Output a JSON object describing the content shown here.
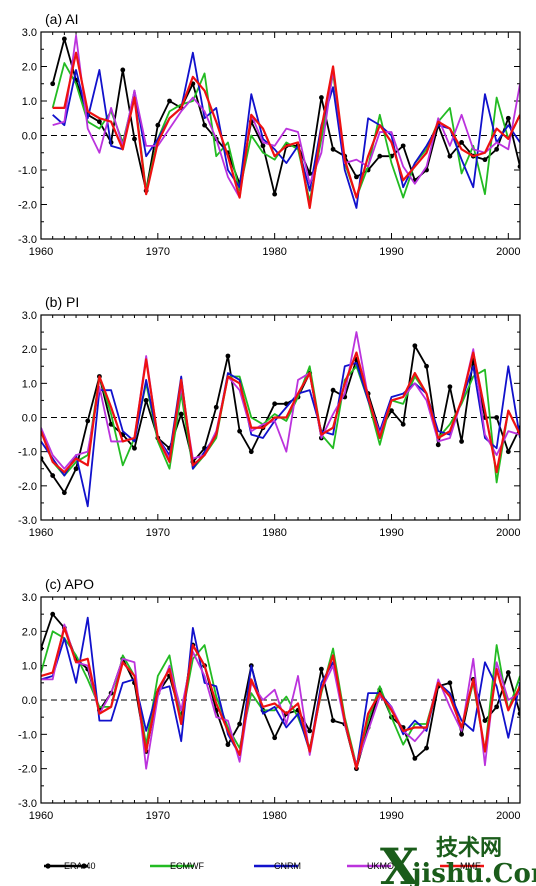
{
  "chart_data": [
    {
      "type": "line",
      "title": "(a) AI",
      "x": [
        1961,
        1962,
        1963,
        1964,
        1965,
        1966,
        1967,
        1968,
        1969,
        1970,
        1971,
        1972,
        1973,
        1974,
        1975,
        1976,
        1977,
        1978,
        1979,
        1980,
        1981,
        1982,
        1983,
        1984,
        1985,
        1986,
        1987,
        1988,
        1989,
        1990,
        1991,
        1992,
        1993,
        1994,
        1995,
        1996,
        1997,
        1998,
        1999,
        2000,
        2001
      ],
      "xlim": [
        1960,
        2001
      ],
      "ylim": [
        -3.0,
        3.0
      ],
      "xticks": [
        "1960",
        "1970",
        "1980",
        "1990",
        "2000"
      ],
      "yticks": [
        "3.0",
        "2.0",
        "1.0",
        "0.0",
        "-1.0",
        "-2.0",
        "-3.0"
      ],
      "series": [
        {
          "name": "ERA-40",
          "values": [
            1.5,
            2.8,
            1.6,
            0.6,
            0.4,
            -0.2,
            1.9,
            -0.1,
            -1.6,
            0.3,
            1.0,
            0.8,
            1.5,
            0.3,
            -0.1,
            -0.5,
            -1.4,
            0.4,
            -0.3,
            -1.7,
            -0.3,
            -0.3,
            -1.1,
            1.1,
            -0.4,
            -0.6,
            -1.2,
            -1.0,
            -0.6,
            -0.6,
            -0.3,
            -1.3,
            -1.0,
            0.3,
            -0.6,
            -0.2,
            -0.6,
            -0.7,
            -0.4,
            0.5,
            -0.9
          ]
        },
        {
          "name": "ECMWF",
          "values": [
            0.8,
            2.1,
            1.5,
            0.4,
            0.2,
            0.7,
            -0.2,
            1.2,
            -1.6,
            -0.1,
            0.7,
            0.9,
            1.0,
            1.8,
            -0.6,
            -0.2,
            -1.6,
            0.0,
            -0.5,
            -0.7,
            -0.2,
            -0.4,
            -1.9,
            -0.1,
            1.8,
            -0.8,
            -1.8,
            -0.9,
            0.6,
            -0.8,
            -1.8,
            -0.8,
            -0.4,
            0.4,
            0.8,
            -1.1,
            -0.3,
            -1.7,
            1.1,
            -0.1,
            0.6
          ]
        },
        {
          "name": "CNRM",
          "values": [
            0.6,
            0.3,
            1.9,
            0.5,
            1.9,
            -0.3,
            -0.4,
            1.3,
            -0.6,
            -0.1,
            0.5,
            0.8,
            2.4,
            0.5,
            0.8,
            -1.0,
            -1.5,
            1.2,
            -0.1,
            -0.4,
            -0.8,
            -0.3,
            -1.6,
            0.3,
            1.4,
            -1.0,
            -2.1,
            0.5,
            0.3,
            0.0,
            -1.5,
            -0.8,
            -0.3,
            0.3,
            0.2,
            -0.7,
            -1.5,
            1.2,
            -0.2,
            0.3,
            -0.2
          ]
        },
        {
          "name": "UKMO",
          "values": [
            0.3,
            0.4,
            2.9,
            0.2,
            -0.5,
            0.8,
            -0.3,
            1.3,
            -0.3,
            -0.3,
            0.2,
            0.7,
            1.1,
            0.7,
            -0.1,
            -1.2,
            -1.8,
            0.6,
            -0.2,
            -0.3,
            0.2,
            0.1,
            -1.4,
            -0.5,
            1.9,
            -0.8,
            -0.7,
            -0.9,
            0.1,
            0.1,
            -0.9,
            -1.4,
            -0.9,
            0.5,
            -0.3,
            0.6,
            -0.4,
            -0.5,
            -0.2,
            -0.4,
            1.5
          ]
        },
        {
          "name": "MME",
          "values": [
            0.8,
            0.8,
            2.4,
            0.7,
            0.5,
            0.4,
            -0.4,
            1.1,
            -1.7,
            -0.2,
            0.5,
            0.8,
            1.7,
            1.3,
            0.4,
            -0.6,
            -1.8,
            0.6,
            0.2,
            -0.6,
            -0.3,
            -0.2,
            -2.1,
            0.2,
            2.0,
            -0.7,
            -1.8,
            -0.6,
            0.3,
            -0.2,
            -1.3,
            -0.9,
            -0.5,
            0.4,
            0.2,
            -0.4,
            -0.6,
            -0.5,
            0.2,
            -0.1,
            0.6
          ]
        }
      ]
    },
    {
      "type": "line",
      "title": "(b) PI",
      "x": [
        1960,
        1961,
        1962,
        1963,
        1964,
        1965,
        1966,
        1967,
        1968,
        1969,
        1970,
        1971,
        1972,
        1973,
        1974,
        1975,
        1976,
        1977,
        1978,
        1979,
        1980,
        1981,
        1982,
        1983,
        1984,
        1985,
        1986,
        1987,
        1988,
        1989,
        1990,
        1991,
        1992,
        1993,
        1994,
        1995,
        1996,
        1997,
        1998,
        1999,
        2000,
        2001
      ],
      "xlim": [
        1960,
        2001
      ],
      "ylim": [
        -3.0,
        3.0
      ],
      "xticks": [
        "1960",
        "1970",
        "1980",
        "1990",
        "2000"
      ],
      "yticks": [
        "3.0",
        "2.0",
        "1.0",
        "0.0",
        "-1.0",
        "-2.0",
        "-3.0"
      ],
      "series": [
        {
          "name": "ERA-40",
          "values": [
            -1.2,
            -1.7,
            -2.2,
            -1.5,
            -0.1,
            1.2,
            -0.2,
            -0.5,
            -0.9,
            0.5,
            -0.6,
            -0.9,
            0.1,
            -1.3,
            -0.9,
            0.3,
            1.8,
            -0.4,
            -1.0,
            -0.3,
            0.4,
            0.4,
            0.6,
            1.3,
            -0.6,
            0.8,
            0.6,
            1.7,
            0.7,
            -0.4,
            0.2,
            -0.2,
            2.1,
            1.5,
            -0.8,
            0.9,
            -0.7,
            1.7,
            0.0,
            0.0,
            -1.0,
            -0.3
          ]
        },
        {
          "name": "ECMWF",
          "values": [
            -0.3,
            -1.3,
            -1.7,
            -1.3,
            -1.1,
            1.2,
            0.1,
            -1.4,
            -0.6,
            1.0,
            -0.7,
            -1.5,
            0.7,
            -1.5,
            -1.1,
            -0.6,
            1.2,
            1.2,
            0.0,
            -0.2,
            0.1,
            -0.1,
            0.6,
            1.5,
            -0.5,
            -0.9,
            1.1,
            1.5,
            0.5,
            -0.8,
            0.5,
            0.4,
            1.2,
            0.7,
            -0.6,
            -0.2,
            0.4,
            1.2,
            1.4,
            -1.9,
            0.2,
            -0.5
          ]
        },
        {
          "name": "CNRM",
          "values": [
            -0.7,
            -1.2,
            -1.7,
            -1.1,
            -2.6,
            0.8,
            0.8,
            -0.4,
            -0.7,
            1.1,
            -0.6,
            -1.1,
            1.2,
            -1.5,
            -1.0,
            -0.5,
            1.3,
            1.1,
            -0.5,
            -0.6,
            -0.1,
            0.3,
            0.7,
            0.8,
            -0.4,
            -0.5,
            1.5,
            1.6,
            0.5,
            -0.4,
            0.6,
            0.7,
            1.0,
            0.7,
            -0.4,
            -0.5,
            0.5,
            1.5,
            -0.6,
            -0.9,
            1.5,
            -0.6
          ]
        },
        {
          "name": "UKMO",
          "values": [
            -0.3,
            -1.1,
            -1.5,
            -1.1,
            -1.0,
            0.9,
            -0.7,
            -0.7,
            -0.6,
            1.8,
            -0.6,
            -1.2,
            0.9,
            -1.2,
            -1.1,
            -0.4,
            1.2,
            0.8,
            -0.4,
            -0.2,
            -0.1,
            -1.0,
            1.1,
            1.3,
            -0.6,
            0.1,
            0.7,
            2.5,
            0.6,
            -0.5,
            0.5,
            0.6,
            1.0,
            0.5,
            -0.7,
            -0.6,
            0.5,
            2.0,
            -0.5,
            -1.1,
            -0.4,
            -0.5
          ]
        },
        {
          "name": "MME",
          "values": [
            -0.4,
            -1.3,
            -1.6,
            -1.2,
            -1.4,
            1.2,
            0.3,
            -0.7,
            -0.6,
            1.7,
            -0.6,
            -1.3,
            1.1,
            -1.4,
            -1.1,
            -0.5,
            1.2,
            1.0,
            -0.3,
            -0.3,
            0.0,
            0.0,
            0.7,
            1.3,
            -0.5,
            -0.3,
            1.0,
            1.9,
            0.6,
            -0.6,
            0.5,
            0.6,
            1.3,
            0.7,
            -0.6,
            -0.4,
            0.5,
            1.9,
            0.2,
            -1.6,
            0.2,
            -0.5
          ]
        }
      ]
    },
    {
      "type": "line",
      "title": "(c) APO",
      "x": [
        1960,
        1961,
        1962,
        1963,
        1964,
        1965,
        1966,
        1967,
        1968,
        1969,
        1970,
        1971,
        1972,
        1973,
        1974,
        1975,
        1976,
        1977,
        1978,
        1979,
        1980,
        1981,
        1982,
        1983,
        1984,
        1985,
        1986,
        1987,
        1988,
        1989,
        1990,
        1991,
        1992,
        1993,
        1994,
        1995,
        1996,
        1997,
        1998,
        1999,
        2000,
        2001
      ],
      "xlim": [
        1960,
        2001
      ],
      "ylim": [
        -3.0,
        3.0
      ],
      "xticks": [
        "1960",
        "1970",
        "1980",
        "1990",
        "2000"
      ],
      "yticks": [
        "3.0",
        "2.0",
        "1.0",
        "0.0",
        "-1.0",
        "-2.0",
        "-3.0"
      ],
      "series": [
        {
          "name": "ERA-40",
          "values": [
            1.5,
            2.5,
            2.1,
            1.2,
            0.9,
            -0.3,
            0.2,
            1.2,
            0.5,
            -1.5,
            0.2,
            0.7,
            -0.5,
            1.6,
            1.0,
            -0.3,
            -1.3,
            -0.7,
            1.0,
            -0.3,
            -1.1,
            -0.4,
            -0.3,
            -0.9,
            0.9,
            -0.6,
            -0.7,
            -2.0,
            -0.8,
            0.3,
            -0.5,
            -0.8,
            -1.7,
            -1.4,
            0.4,
            0.5,
            -1.0,
            0.6,
            -0.6,
            -0.2,
            0.8,
            -0.4
          ]
        },
        {
          "name": "ECMWF",
          "values": [
            0.8,
            2.0,
            1.8,
            1.3,
            0.6,
            -0.2,
            -0.2,
            1.3,
            0.7,
            -1.3,
            0.7,
            1.3,
            -0.6,
            1.2,
            1.6,
            0.1,
            -0.8,
            -1.4,
            0.2,
            -0.3,
            -0.3,
            0.1,
            -0.5,
            -1.4,
            0.2,
            1.5,
            -0.5,
            -1.9,
            -0.6,
            0.4,
            -0.5,
            -1.3,
            -0.7,
            -0.7,
            0.5,
            0.1,
            -0.8,
            0.5,
            -1.5,
            1.6,
            -0.3,
            0.7
          ]
        },
        {
          "name": "CNRM",
          "values": [
            0.6,
            0.7,
            1.8,
            0.5,
            2.4,
            -0.6,
            -0.6,
            0.5,
            0.6,
            -0.9,
            0.3,
            0.4,
            -1.2,
            2.1,
            0.5,
            0.4,
            -1.0,
            -1.6,
            1.0,
            -0.4,
            -0.2,
            -0.8,
            -0.4,
            -1.5,
            0.5,
            1.1,
            -0.6,
            -2.0,
            0.2,
            0.2,
            -0.2,
            -1.0,
            -0.6,
            -0.9,
            0.5,
            0.2,
            -0.6,
            -0.9,
            1.1,
            0.4,
            -1.1,
            0.5
          ]
        },
        {
          "name": "UKMO",
          "values": [
            0.6,
            0.6,
            2.2,
            1.1,
            1.0,
            -0.4,
            0.2,
            1.2,
            1.1,
            -2.0,
            0.1,
            1.0,
            -0.3,
            1.4,
            0.7,
            -0.5,
            -0.6,
            -1.8,
            0.5,
            0.0,
            0.3,
            -0.7,
            0.7,
            -1.6,
            0.3,
            1.0,
            -0.7,
            -1.9,
            -0.9,
            0.1,
            -0.2,
            -0.9,
            -1.2,
            -0.8,
            0.6,
            -0.2,
            -0.9,
            1.2,
            -1.9,
            1.1,
            0.0,
            0.2
          ]
        },
        {
          "name": "MME",
          "values": [
            0.7,
            0.8,
            2.1,
            1.1,
            1.2,
            -0.4,
            -0.2,
            1.1,
            0.7,
            -1.5,
            0.3,
            0.9,
            -0.7,
            1.6,
            1.0,
            -0.1,
            -0.9,
            -1.6,
            0.6,
            -0.2,
            -0.1,
            -0.4,
            -0.1,
            -1.5,
            0.3,
            1.3,
            -0.6,
            -2.0,
            -0.4,
            0.2,
            -0.3,
            -0.9,
            -0.8,
            -0.8,
            0.5,
            0.1,
            -0.8,
            0.6,
            -1.5,
            0.9,
            -0.3,
            0.4
          ]
        }
      ]
    }
  ],
  "series_colors": {
    "ERA-40": "#000000",
    "ECMWF": "#22bb22",
    "CNRM": "#1111cc",
    "UKMO": "#bb33dd",
    "MME": "#ee1111"
  },
  "legend": {
    "placement": "bottom",
    "items": [
      {
        "name": "ERA-40",
        "color": "#000000",
        "marker": true
      },
      {
        "name": "ECMWF",
        "color": "#22bb22",
        "marker": false
      },
      {
        "name": "CNRM",
        "color": "#1111cc",
        "marker": false
      },
      {
        "name": "UKMO",
        "color": "#bb33dd",
        "marker": false
      },
      {
        "name": "MME",
        "color": "#ee1111",
        "marker": false
      }
    ]
  },
  "watermark": {
    "cn": "技术网",
    "x": "X",
    "en": "jishu.Com"
  }
}
